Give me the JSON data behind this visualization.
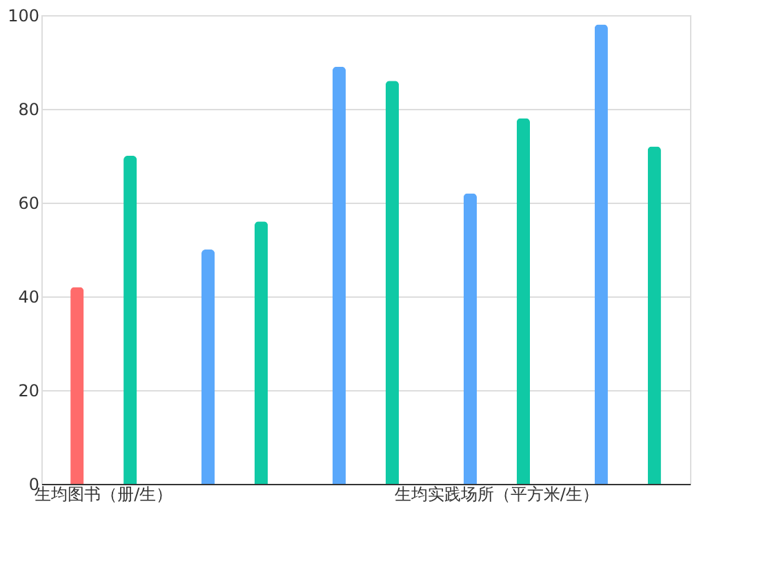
{
  "chart_data": {
    "type": "bar",
    "categories": [
      "生均图书（册/生）",
      null,
      null,
      "生均实践场所（平方米/生）",
      null
    ],
    "series": [
      {
        "values": [
          42,
          50,
          89,
          62,
          98
        ],
        "colors": [
          "#ff6b6b",
          "#5aa8fb",
          "#5aa8fb",
          "#5aa8fb",
          "#5aa8fb"
        ]
      },
      {
        "values": [
          70,
          56,
          86,
          78,
          72
        ],
        "color": "#10c9a5"
      }
    ],
    "ylim": [
      0,
      100
    ],
    "yticks": [
      0,
      20,
      40,
      60,
      80,
      100
    ],
    "grid": "y"
  }
}
